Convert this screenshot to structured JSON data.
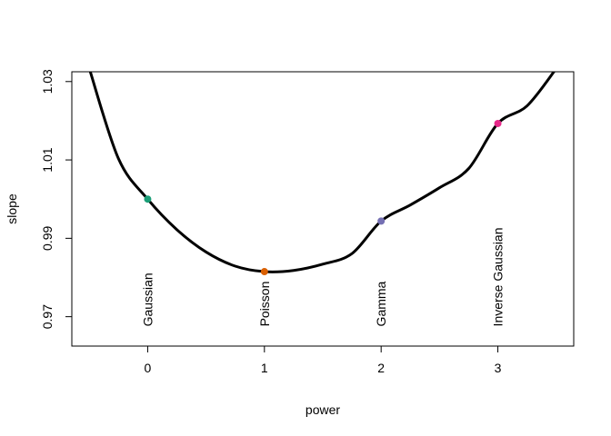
{
  "chart_data": {
    "type": "line",
    "title": "",
    "xlabel": "power",
    "ylabel": "slope",
    "xlim": [
      -0.65,
      3.65
    ],
    "ylim": [
      0.9625,
      1.0325
    ],
    "x_ticks": [
      0,
      1,
      2,
      3
    ],
    "x_tick_labels": [
      "0",
      "1",
      "2",
      "3"
    ],
    "y_ticks": [
      0.97,
      0.99,
      1.01,
      1.03
    ],
    "y_tick_labels": [
      "0.97",
      "0.99",
      "1.01",
      "1.03"
    ],
    "grid": false,
    "curve": {
      "color": "#000000",
      "x": [
        -0.5,
        -0.25,
        0,
        0.25,
        0.5,
        0.75,
        1,
        1.25,
        1.5,
        1.75,
        2,
        2.25,
        2.5,
        2.75,
        3,
        3.25,
        3.5
      ],
      "y": [
        1.0333,
        1.0103,
        1.0,
        0.9922,
        0.9865,
        0.9829,
        0.9815,
        0.9818,
        0.9834,
        0.9861,
        0.9944,
        0.9985,
        1.0029,
        1.0078,
        1.0193,
        1.0238,
        1.0333
      ]
    },
    "points": [
      {
        "x": 0,
        "y": 1.0,
        "color": "#1b9e77",
        "label": "Gaussian"
      },
      {
        "x": 1,
        "y": 0.9815,
        "color": "#d95f02",
        "label": "Poisson"
      },
      {
        "x": 2,
        "y": 0.9944,
        "color": "#7570b3",
        "label": "Gamma"
      },
      {
        "x": 3,
        "y": 1.0193,
        "color": "#e7298a",
        "label": "Inverse Gaussian"
      }
    ],
    "point_label_y": 0.9675
  }
}
